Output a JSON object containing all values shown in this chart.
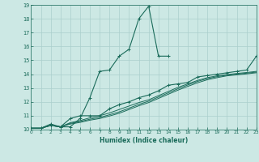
{
  "xlabel": "Humidex (Indice chaleur)",
  "xlim": [
    0,
    23
  ],
  "ylim": [
    10,
    19
  ],
  "xticks": [
    0,
    1,
    2,
    3,
    4,
    5,
    6,
    7,
    8,
    9,
    10,
    11,
    12,
    13,
    14,
    15,
    16,
    17,
    18,
    19,
    20,
    21,
    22,
    23
  ],
  "yticks": [
    10,
    11,
    12,
    13,
    14,
    15,
    16,
    17,
    18,
    19
  ],
  "bg_color": "#cce8e4",
  "line_color": "#1a6b5a",
  "grid_color": "#aacfcc",
  "lines": [
    {
      "x": [
        0,
        1,
        2,
        3,
        4,
        5,
        6,
        7,
        8,
        9,
        10,
        11,
        12,
        13,
        14
      ],
      "y": [
        10.1,
        10.1,
        10.4,
        10.2,
        10.2,
        10.8,
        12.3,
        14.2,
        14.3,
        15.3,
        15.8,
        18.0,
        18.9,
        15.3,
        15.3
      ],
      "markers": true
    },
    {
      "x": [
        0,
        1,
        2,
        3,
        4,
        5,
        6,
        7,
        8,
        9,
        10,
        11,
        12,
        13,
        14,
        15,
        16,
        17,
        18,
        19,
        20,
        21,
        22,
        23
      ],
      "y": [
        10.1,
        10.1,
        10.3,
        10.2,
        10.8,
        11.0,
        11.0,
        11.0,
        11.5,
        11.8,
        12.0,
        12.3,
        12.5,
        12.8,
        13.2,
        13.3,
        13.4,
        13.8,
        13.9,
        14.0,
        14.1,
        14.2,
        14.3,
        15.3
      ],
      "markers": true
    },
    {
      "x": [
        0,
        1,
        2,
        3,
        4,
        5,
        6,
        7,
        8,
        9,
        10,
        11,
        12,
        13,
        14,
        15,
        16,
        17,
        18,
        19,
        20,
        21,
        22,
        23
      ],
      "y": [
        10.1,
        10.1,
        10.3,
        10.2,
        10.5,
        10.65,
        10.85,
        11.0,
        11.2,
        11.45,
        11.7,
        11.95,
        12.15,
        12.45,
        12.75,
        13.05,
        13.3,
        13.55,
        13.75,
        13.88,
        13.97,
        14.05,
        14.12,
        14.2
      ],
      "markers": false
    },
    {
      "x": [
        0,
        1,
        2,
        3,
        4,
        5,
        6,
        7,
        8,
        9,
        10,
        11,
        12,
        13,
        14,
        15,
        16,
        17,
        18,
        19,
        20,
        21,
        22,
        23
      ],
      "y": [
        10.1,
        10.1,
        10.3,
        10.2,
        10.45,
        10.58,
        10.75,
        10.88,
        11.07,
        11.28,
        11.55,
        11.82,
        12.05,
        12.35,
        12.65,
        12.95,
        13.22,
        13.48,
        13.68,
        13.82,
        13.93,
        14.0,
        14.07,
        14.15
      ],
      "markers": false
    },
    {
      "x": [
        0,
        1,
        2,
        3,
        4,
        5,
        6,
        7,
        8,
        9,
        10,
        11,
        12,
        13,
        14,
        15,
        16,
        17,
        18,
        19,
        20,
        21,
        22,
        23
      ],
      "y": [
        10.1,
        10.1,
        10.3,
        10.2,
        10.4,
        10.52,
        10.68,
        10.8,
        10.98,
        11.18,
        11.45,
        11.72,
        11.95,
        12.25,
        12.55,
        12.85,
        13.12,
        13.38,
        13.6,
        13.75,
        13.88,
        13.95,
        14.02,
        14.1
      ],
      "markers": false
    }
  ]
}
